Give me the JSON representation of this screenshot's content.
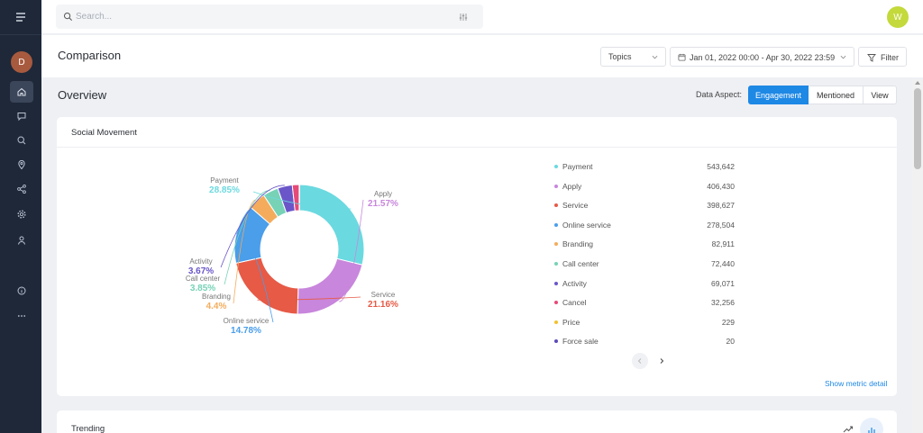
{
  "sidebar": {
    "avatar_initial": "D",
    "items": [
      {
        "name": "home-icon",
        "active": true
      },
      {
        "name": "chat-icon",
        "active": false
      },
      {
        "name": "search-icon",
        "active": false
      },
      {
        "name": "location-pin-icon",
        "active": false
      },
      {
        "name": "share-icon",
        "active": false
      },
      {
        "name": "gear-icon",
        "active": false
      },
      {
        "name": "user-icon",
        "active": false
      },
      {
        "name": "info-icon",
        "active": false
      },
      {
        "name": "more-dots-icon",
        "active": false
      }
    ]
  },
  "topbar": {
    "search_placeholder": "Search...",
    "user_initial": "W",
    "user_color": "#c4d93b"
  },
  "header": {
    "title": "Comparison",
    "topics_select": "Topics",
    "date_range": "Jan 01, 2022 00:00 - Apr 30, 2022 23:59",
    "filter_label": "Filter"
  },
  "overview": {
    "title": "Overview",
    "aspect_label": "Data Aspect:",
    "segments": [
      "Engagement",
      "Mentioned",
      "View"
    ],
    "active_segment": "Engagement",
    "accent": "#1e88e5"
  },
  "social_movement": {
    "title": "Social Movement",
    "donut_labels": [
      {
        "name": "Payment",
        "pct": "28.85%",
        "color": "#6bd9e0"
      },
      {
        "name": "Apply",
        "pct": "21.57%",
        "color": "#c886dc"
      },
      {
        "name": "Service",
        "pct": "21.16%",
        "color": "#e65a46"
      },
      {
        "name": "Online service",
        "pct": "14.78%",
        "color": "#4a9eea"
      },
      {
        "name": "Branding",
        "pct": "4.4%",
        "color": "#f4ac5c"
      },
      {
        "name": "Call center",
        "pct": "3.85%",
        "color": "#77d2b6"
      },
      {
        "name": "Activity",
        "pct": "3.67%",
        "color": "#6a56c8"
      }
    ],
    "legend": [
      {
        "name": "Payment",
        "value": "543,642",
        "color": "#6bd9e0"
      },
      {
        "name": "Apply",
        "value": "406,430",
        "color": "#c886dc"
      },
      {
        "name": "Service",
        "value": "398,627",
        "color": "#e65a46"
      },
      {
        "name": "Online service",
        "value": "278,504",
        "color": "#4a9eea"
      },
      {
        "name": "Branding",
        "value": "82,911",
        "color": "#f4ac5c"
      },
      {
        "name": "Call center",
        "value": "72,440",
        "color": "#77d2b6"
      },
      {
        "name": "Activity",
        "value": "69,071",
        "color": "#6a56c8"
      },
      {
        "name": "Cancel",
        "value": "32,256",
        "color": "#e64a78"
      },
      {
        "name": "Price",
        "value": "229",
        "color": "#f2c12e"
      },
      {
        "name": "Force sale",
        "value": "20",
        "color": "#5b4bb8"
      }
    ],
    "metric_link": "Show metric detail"
  },
  "trending": {
    "title": "Trending"
  },
  "chart_data": {
    "type": "pie",
    "categories": [
      "Payment",
      "Apply",
      "Service",
      "Online service",
      "Branding",
      "Call center",
      "Activity",
      "Cancel",
      "Price",
      "Force sale"
    ],
    "values": [
      543642,
      406430,
      398627,
      278504,
      82911,
      72440,
      69071,
      32256,
      229,
      20
    ],
    "percent_labels": [
      "28.85%",
      "21.57%",
      "21.16%",
      "14.78%",
      "4.4%",
      "3.85%",
      "3.67%",
      "",
      "",
      ""
    ],
    "colors": [
      "#6bd9e0",
      "#c886dc",
      "#e65a46",
      "#4a9eea",
      "#f4ac5c",
      "#77d2b6",
      "#6a56c8",
      "#e64a78",
      "#f2c12e",
      "#5b4bb8"
    ],
    "title": "Social Movement",
    "donut": true,
    "legend_position": "right"
  }
}
